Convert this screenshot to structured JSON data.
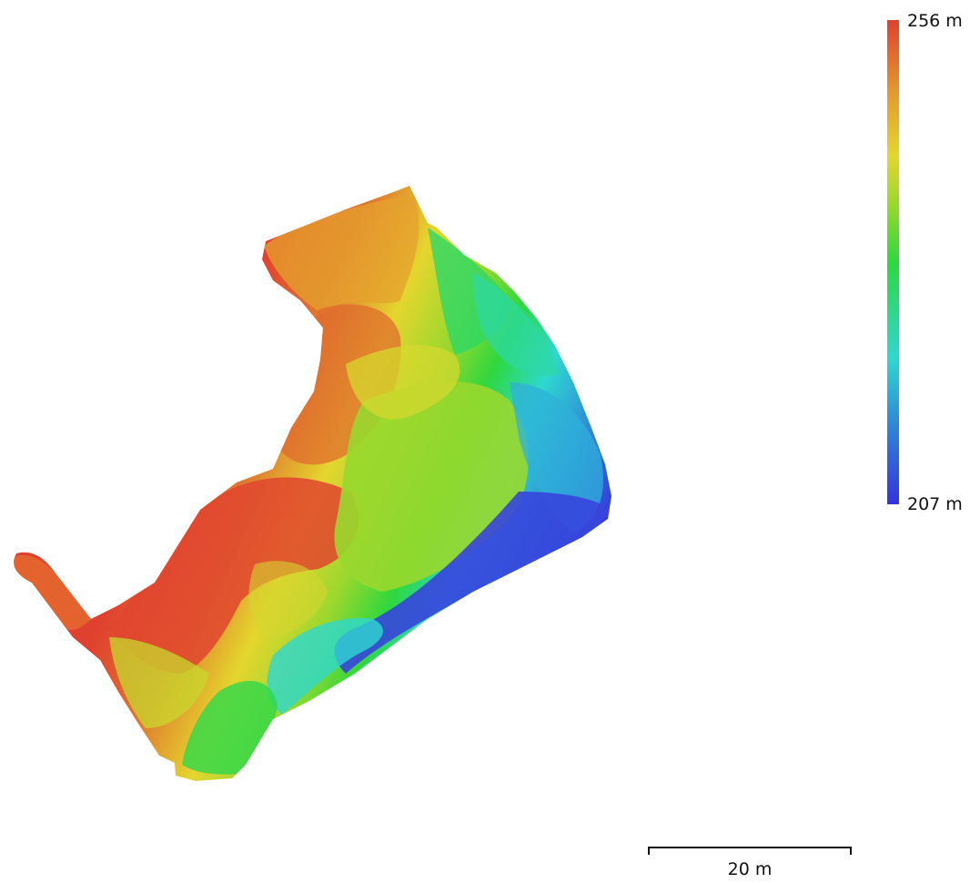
{
  "legend": {
    "max_label": "256 m",
    "min_label": "207 m",
    "max_value": 256,
    "min_value": 207,
    "unit": "m",
    "colors": [
      "#3333dd",
      "#2f8ad8",
      "#2ed8d0",
      "#2ed83d",
      "#9ad82e",
      "#e4d62e",
      "#e39a2e",
      "#e0412e"
    ]
  },
  "scale_bar": {
    "label": "20 m",
    "distance": 20,
    "unit": "m"
  }
}
